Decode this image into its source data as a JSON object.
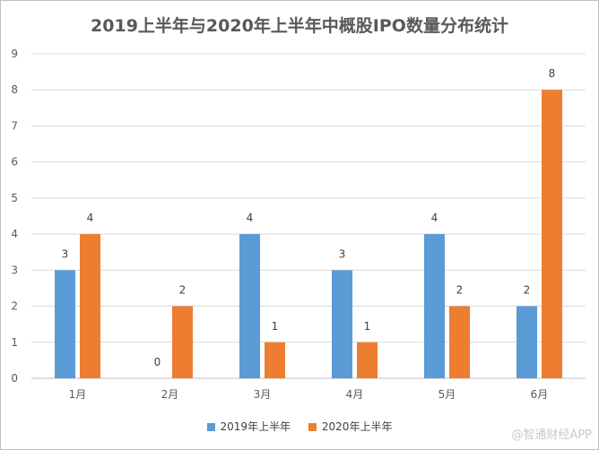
{
  "chart_data": {
    "type": "bar",
    "title": "2019上半年与2020年上半年中概股IPO数量分布统计",
    "categories": [
      "1月",
      "2月",
      "3月",
      "4月",
      "5月",
      "6月"
    ],
    "series": [
      {
        "name": "2019年上半年",
        "color": "#5b9bd5",
        "values": [
          3,
          0,
          4,
          3,
          4,
          2
        ]
      },
      {
        "name": "2020年上半年",
        "color": "#ed7d31",
        "values": [
          4,
          2,
          1,
          1,
          2,
          8
        ]
      }
    ],
    "xlabel": "",
    "ylabel": "",
    "ylim": [
      0,
      9
    ],
    "yticks": [
      0,
      1,
      2,
      3,
      4,
      5,
      6,
      7,
      8,
      9
    ],
    "grid": true,
    "legend_position": "bottom"
  },
  "watermark": "@智通财经APP"
}
